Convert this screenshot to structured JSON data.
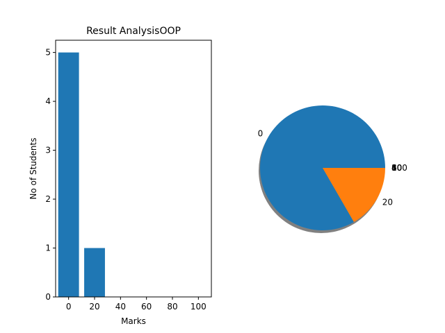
{
  "chart_data": [
    {
      "type": "bar",
      "title": "Result AnalysisOOP",
      "xlabel": "Marks",
      "ylabel": "No of Students",
      "x": [
        0,
        20,
        40,
        60,
        80,
        100
      ],
      "values": [
        5,
        1,
        0,
        0,
        0,
        0
      ],
      "xlim": [
        -10,
        110
      ],
      "ylim": [
        0,
        5.25
      ],
      "xticks": [
        "0",
        "20",
        "40",
        "60",
        "80",
        "100"
      ],
      "yticks": [
        "0",
        "1",
        "2",
        "3",
        "4",
        "5"
      ],
      "grid": false,
      "color": "#1f77b4"
    },
    {
      "type": "pie",
      "labels": [
        "0",
        "20",
        "40",
        "60",
        "80",
        "100"
      ],
      "values": [
        5,
        1,
        0,
        0,
        0,
        0
      ],
      "colors": [
        "#1f77b4",
        "#ff7f0e",
        "#2ca02c",
        "#d62728",
        "#9467bd",
        "#8c564b"
      ],
      "shadow": true
    }
  ]
}
